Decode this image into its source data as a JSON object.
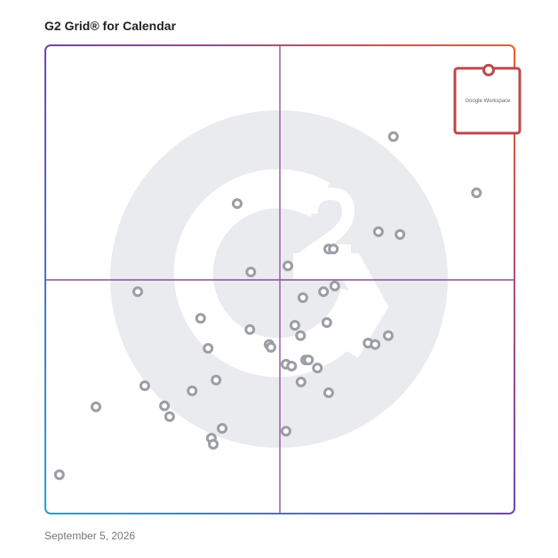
{
  "chart_data": {
    "type": "scatter",
    "title": "G2 Grid® for Calendar",
    "date": "September 5, 2026",
    "xlim": [
      0,
      100
    ],
    "ylim": [
      0,
      100
    ],
    "color": "#9c9ea6",
    "x": [
      74.2,
      91.9,
      40.9,
      71.0,
      75.6,
      60.4,
      61.4,
      43.8,
      51.7,
      19.7,
      61.7,
      59.3,
      54.9,
      33.1,
      53.2,
      60.0,
      43.6,
      54.4,
      73.1,
      68.8,
      70.3,
      34.7,
      47.7,
      48.1,
      55.5,
      56.1,
      51.3,
      52.5,
      58.0,
      36.4,
      54.5,
      21.2,
      31.3,
      60.4,
      10.8,
      25.4,
      26.5,
      37.7,
      51.3,
      35.4,
      35.8,
      3.0
    ],
    "y": [
      80.5,
      68.5,
      66.2,
      60.2,
      59.6,
      56.5,
      56.5,
      51.6,
      52.9,
      47.4,
      48.6,
      47.4,
      46.1,
      41.7,
      40.2,
      40.8,
      39.3,
      38.0,
      38.0,
      36.4,
      36.1,
      35.3,
      36.1,
      35.5,
      32.8,
      32.8,
      31.9,
      31.5,
      31.1,
      28.5,
      28.1,
      27.3,
      26.2,
      25.8,
      22.8,
      23.0,
      20.7,
      18.2,
      17.6,
      16.1,
      14.8,
      8.3
    ],
    "highlight": {
      "label": "Google Workspace",
      "x": 94.5,
      "y": 94.7,
      "color": "#b94a4c"
    }
  }
}
